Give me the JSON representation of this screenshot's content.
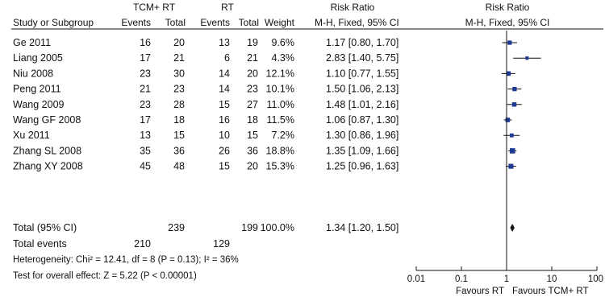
{
  "chart_data": {
    "type": "forest",
    "columns": {
      "group1": "TCM+ RT",
      "group2": "RT",
      "study": "Study or Subgroup",
      "events": "Events",
      "total": "Total",
      "weight": "Weight",
      "rr_top": "Risk Ratio",
      "rr_method": "M-H, Fixed, 95% CI",
      "plot_top": "Risk Ratio",
      "plot_method": "M-H, Fixed, 95% CI"
    },
    "studies": [
      {
        "name": "Ge 2011",
        "e1": "16",
        "t1": "20",
        "e2": "13",
        "t2": "19",
        "weight": "9.6%",
        "rr_text": "1.17 [0.80, 1.70]",
        "rr": 1.17,
        "lo": 0.8,
        "hi": 1.7,
        "w": 9.6
      },
      {
        "name": "Liang 2005",
        "e1": "17",
        "t1": "21",
        "e2": "6",
        "t2": "21",
        "weight": "4.3%",
        "rr_text": "2.83 [1.40, 5.75]",
        "rr": 2.83,
        "lo": 1.4,
        "hi": 5.75,
        "w": 4.3
      },
      {
        "name": "Niu 2008",
        "e1": "23",
        "t1": "30",
        "e2": "14",
        "t2": "20",
        "weight": "12.1%",
        "rr_text": "1.10 [0.77, 1.55]",
        "rr": 1.1,
        "lo": 0.77,
        "hi": 1.55,
        "w": 12.1
      },
      {
        "name": "Peng 2011",
        "e1": "21",
        "t1": "23",
        "e2": "14",
        "t2": "23",
        "weight": "10.1%",
        "rr_text": "1.50 [1.06, 2.13]",
        "rr": 1.5,
        "lo": 1.06,
        "hi": 2.13,
        "w": 10.1
      },
      {
        "name": "Wang 2009",
        "e1": "23",
        "t1": "28",
        "e2": "15",
        "t2": "27",
        "weight": "11.0%",
        "rr_text": "1.48 [1.01, 2.16]",
        "rr": 1.48,
        "lo": 1.01,
        "hi": 2.16,
        "w": 11.0
      },
      {
        "name": "Wang GF 2008",
        "e1": "17",
        "t1": "18",
        "e2": "16",
        "t2": "18",
        "weight": "11.5%",
        "rr_text": "1.06 [0.87, 1.30]",
        "rr": 1.06,
        "lo": 0.87,
        "hi": 1.3,
        "w": 11.5
      },
      {
        "name": "Xu 2011",
        "e1": "13",
        "t1": "15",
        "e2": "10",
        "t2": "15",
        "weight": "7.2%",
        "rr_text": "1.30 [0.86, 1.96]",
        "rr": 1.3,
        "lo": 0.86,
        "hi": 1.96,
        "w": 7.2
      },
      {
        "name": "Zhang SL 2008",
        "e1": "35",
        "t1": "36",
        "e2": "26",
        "t2": "36",
        "weight": "18.8%",
        "rr_text": "1.35 [1.09, 1.66]",
        "rr": 1.35,
        "lo": 1.09,
        "hi": 1.66,
        "w": 18.8
      },
      {
        "name": "Zhang XY 2008",
        "e1": "45",
        "t1": "48",
        "e2": "15",
        "t2": "20",
        "weight": "15.3%",
        "rr_text": "1.25 [0.96, 1.63]",
        "rr": 1.25,
        "lo": 0.96,
        "hi": 1.63,
        "w": 15.3
      }
    ],
    "total": {
      "name": "Total (95% CI)",
      "t1": "239",
      "t2": "199",
      "weight": "100.0%",
      "rr_text": "1.34 [1.20, 1.50]",
      "rr": 1.34,
      "lo": 1.2,
      "hi": 1.5
    },
    "total_events": {
      "name": "Total events",
      "e1": "210",
      "e2": "129"
    },
    "heterogeneity": "Heterogeneity: Chi² = 12.41, df = 8 (P = 0.13); I² = 36%",
    "overall_effect": "Test for overall effect: Z = 5.22 (P < 0.00001)",
    "x_scale": "log",
    "xlim": [
      0.01,
      100
    ],
    "ticks": [
      0.01,
      0.1,
      1,
      10,
      100
    ],
    "tick_labels": [
      "0.01",
      "0.1",
      "1",
      "10",
      "100"
    ],
    "favours_left": "Favours RT",
    "favours_right": "Favours TCM+ RT",
    "colors": {
      "marker": "#1f3a93",
      "line": "#111111"
    }
  }
}
